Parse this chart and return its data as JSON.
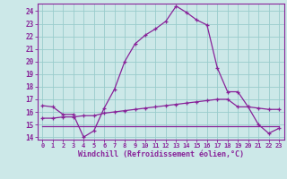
{
  "xlabel": "Windchill (Refroidissement éolien,°C)",
  "background_color": "#cce8e8",
  "grid_color": "#99cccc",
  "line_color": "#882299",
  "xlim": [
    -0.5,
    23.5
  ],
  "ylim": [
    13.8,
    24.6
  ],
  "yticks": [
    14,
    15,
    16,
    17,
    18,
    19,
    20,
    21,
    22,
    23,
    24
  ],
  "xticks": [
    0,
    1,
    2,
    3,
    4,
    5,
    6,
    7,
    8,
    9,
    10,
    11,
    12,
    13,
    14,
    15,
    16,
    17,
    18,
    19,
    20,
    21,
    22,
    23
  ],
  "series1_x": [
    0,
    1,
    2,
    3,
    4,
    5,
    6,
    7,
    8,
    9,
    10,
    11,
    12,
    13,
    14,
    15,
    16,
    17,
    18,
    19,
    20,
    21,
    22,
    23
  ],
  "series1_y": [
    16.5,
    16.4,
    15.8,
    15.8,
    14.0,
    14.5,
    16.3,
    17.8,
    20.0,
    21.4,
    22.1,
    22.6,
    23.2,
    24.4,
    23.9,
    23.3,
    22.9,
    19.5,
    17.6,
    17.6,
    16.4,
    15.0,
    14.3,
    14.7
  ],
  "series2_x": [
    0,
    1,
    2,
    3,
    4,
    5,
    6,
    7,
    8,
    9,
    10,
    11,
    12,
    13,
    14,
    15,
    16,
    17,
    18,
    19,
    20,
    21,
    22,
    23
  ],
  "series2_y": [
    15.5,
    15.5,
    15.6,
    15.6,
    15.7,
    15.7,
    15.9,
    16.0,
    16.1,
    16.2,
    16.3,
    16.4,
    16.5,
    16.6,
    16.7,
    16.8,
    16.9,
    17.0,
    17.0,
    16.4,
    16.4,
    16.3,
    16.2,
    16.2
  ],
  "series3_x": [
    0,
    23
  ],
  "series3_y": [
    14.9,
    14.9
  ]
}
